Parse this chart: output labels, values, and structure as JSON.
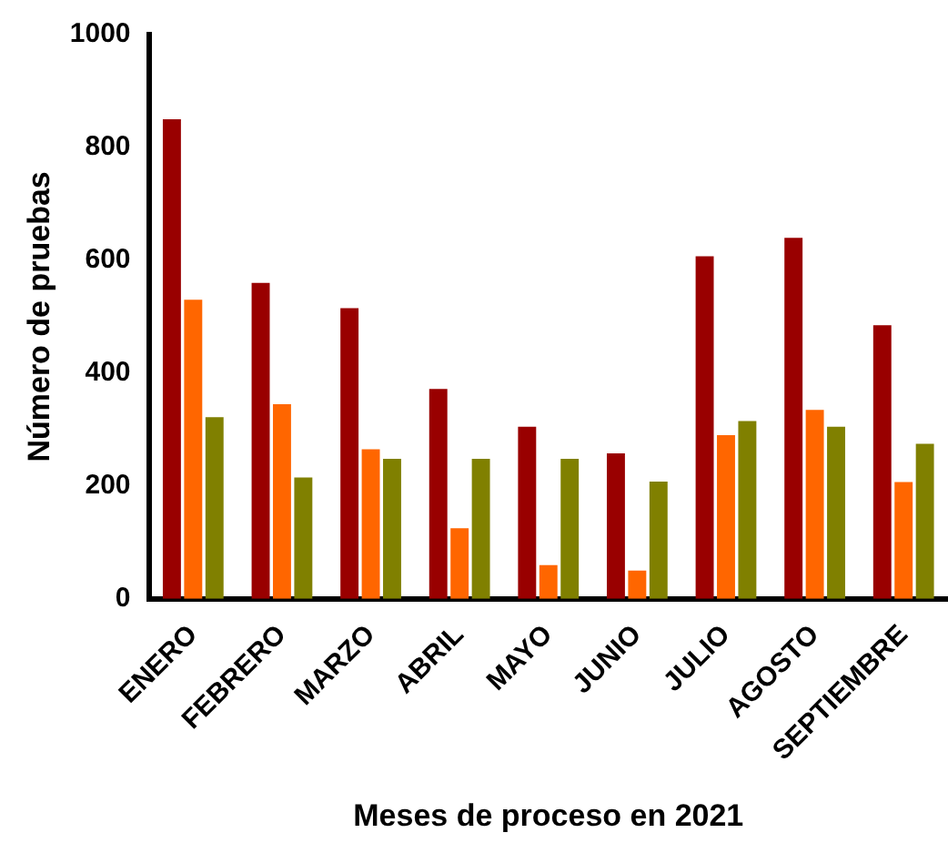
{
  "chart_data": {
    "type": "bar",
    "xlabel": "Meses de proceso en 2021",
    "ylabel": "Número de pruebas",
    "categories": [
      "ENERO",
      "FEBRERO",
      "MARZO",
      "ABRIL",
      "MAYO",
      "JUNIO",
      "JULIO",
      "AGOSTO",
      "SEPTIEMBRE"
    ],
    "series": [
      {
        "color": "#990000",
        "values": [
          850,
          560,
          515,
          372,
          305,
          258,
          607,
          640,
          485
        ]
      },
      {
        "color": "#ff6600",
        "values": [
          530,
          345,
          265,
          125,
          60,
          50,
          290,
          335,
          207
        ]
      },
      {
        "color": "#808000",
        "values": [
          322,
          215,
          248,
          248,
          248,
          208,
          315,
          305,
          275
        ]
      }
    ],
    "ylim": [
      0,
      1000
    ],
    "yticks": [
      0,
      200,
      400,
      600,
      800,
      1000
    ],
    "grid": false,
    "legend": false
  }
}
